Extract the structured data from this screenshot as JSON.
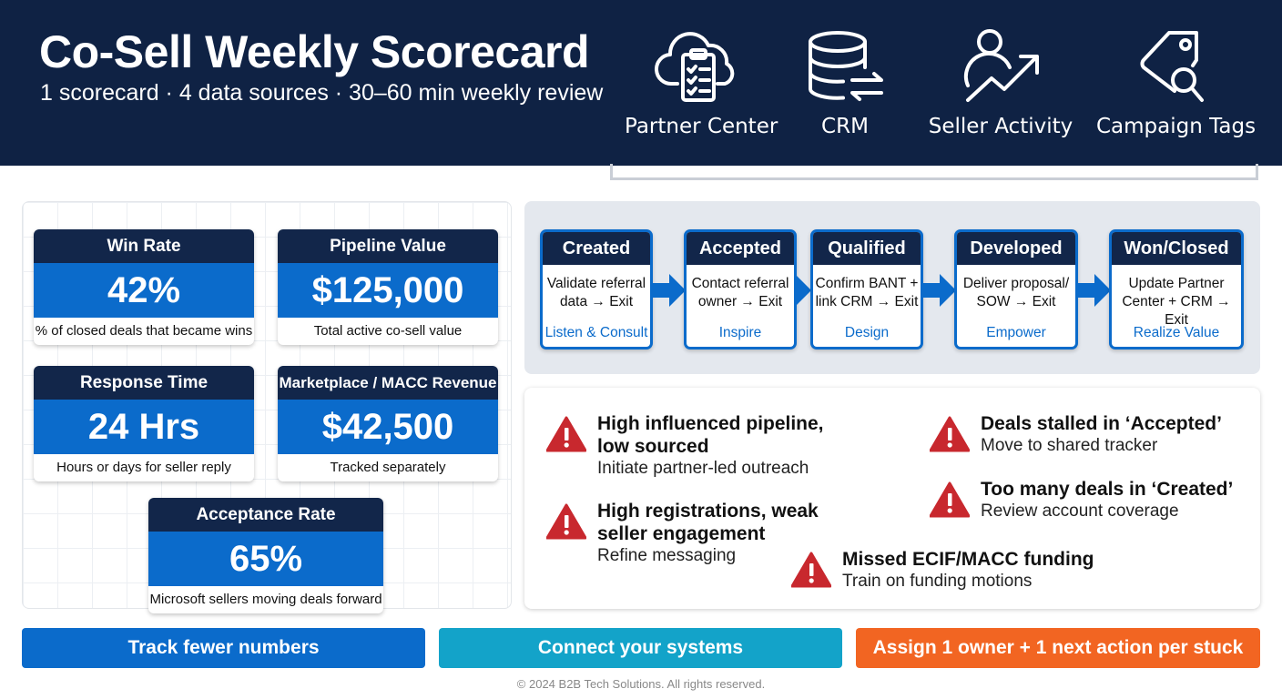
{
  "header": {
    "title": "Co-Sell Weekly Scorecard",
    "subtitle": "1 scorecard · 4 data sources · 30–60 min weekly review",
    "sources": [
      {
        "label": "Partner Center",
        "icon": "cloud-clipboard-icon"
      },
      {
        "label": "CRM",
        "icon": "database-sync-icon"
      },
      {
        "label": "Seller Activity",
        "icon": "person-growth-icon"
      },
      {
        "label": "Campaign Tags",
        "icon": "tag-search-icon"
      }
    ]
  },
  "kpis": [
    {
      "title": "Win Rate",
      "value": "42%",
      "desc": "% of closed deals that became wins"
    },
    {
      "title": "Pipeline Value",
      "value": "$125,000",
      "desc": "Total active co-sell value"
    },
    {
      "title": "Response Time",
      "value": "24 Hrs",
      "desc": "Hours or days for seller reply"
    },
    {
      "title": "Marketplace / MACC Revenue",
      "value": "$42,500",
      "desc": "Tracked separately"
    },
    {
      "title": "Acceptance Rate",
      "value": "65%",
      "desc": "Microsoft sellers moving deals forward"
    }
  ],
  "stages": [
    {
      "name": "Created",
      "line1": "Validate referral",
      "line2": "data → Exit",
      "motion": "Listen & Consult"
    },
    {
      "name": "Accepted",
      "line1": "Contact referral",
      "line2": "owner → Exit",
      "motion": "Inspire"
    },
    {
      "name": "Qualified",
      "line1": "Confirm BANT +",
      "line2": "link CRM → Exit",
      "motion": "Design"
    },
    {
      "name": "Developed",
      "line1": "Deliver proposal/",
      "line2": "SOW → Exit",
      "motion": "Empower"
    },
    {
      "name": "Won/Closed",
      "line1": "Update Partner",
      "line2": "Center + CRM → Exit",
      "motion": "Realize Value"
    }
  ],
  "issues": [
    {
      "title": "High influenced pipeline, low sourced",
      "action": "Initiate partner-led outreach"
    },
    {
      "title": "High registrations, weak seller engagement",
      "action": "Refine messaging"
    },
    {
      "title": "Deals stalled in ‘Accepted’",
      "action": "Move to shared tracker"
    },
    {
      "title": "Too many deals in ‘Created’",
      "action": "Review account coverage"
    },
    {
      "title": "Missed ECIF/MACC funding",
      "action": "Train on funding motions"
    }
  ],
  "buttons": [
    {
      "label": "Track fewer numbers",
      "color": "#0b6bcb"
    },
    {
      "label": "Connect your systems",
      "color": "#13a3c9"
    },
    {
      "label": "Assign 1 owner + 1 next action per stuck deal",
      "color": "#f26522"
    }
  ],
  "footer": "© 2024 B2B Tech Solutions. All rights reserved.",
  "colors": {
    "navy": "#0f2244",
    "blue": "#0b6bcb",
    "warning": "#c8282e"
  }
}
